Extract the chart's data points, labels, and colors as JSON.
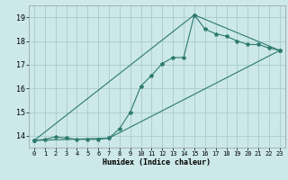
{
  "title": "",
  "xlabel": "Humidex (Indice chaleur)",
  "bg_color": "#cce8e8",
  "grid_color": "#aacccc",
  "line_color": "#2d7a6e",
  "marker": "*",
  "marker_size": 3,
  "xlim": [
    -0.5,
    23.5
  ],
  "ylim": [
    13.5,
    19.5
  ],
  "yticks": [
    14,
    15,
    16,
    17,
    18,
    19
  ],
  "xticks": [
    0,
    1,
    2,
    3,
    4,
    5,
    6,
    7,
    8,
    9,
    10,
    11,
    12,
    13,
    14,
    15,
    16,
    17,
    18,
    19,
    20,
    21,
    22,
    23
  ],
  "line1_x": [
    0,
    1,
    2,
    3,
    4,
    5,
    6,
    7,
    8,
    9,
    10,
    11,
    12,
    13,
    14,
    15,
    16,
    17,
    18,
    19,
    20,
    21,
    22,
    23
  ],
  "line1_y": [
    13.8,
    13.85,
    13.95,
    13.9,
    13.85,
    13.85,
    13.85,
    13.9,
    14.3,
    15.0,
    16.1,
    16.55,
    17.05,
    17.3,
    17.3,
    19.1,
    18.5,
    18.3,
    18.2,
    18.0,
    17.85,
    17.85,
    17.7,
    17.6
  ],
  "line2_x": [
    0,
    7,
    23
  ],
  "line2_y": [
    13.8,
    13.9,
    17.6
  ],
  "line3_x": [
    0,
    15,
    23
  ],
  "line3_y": [
    13.8,
    19.1,
    17.6
  ],
  "xlabel_fontsize": 6,
  "tick_fontsize": 5,
  "linewidth": 0.8
}
